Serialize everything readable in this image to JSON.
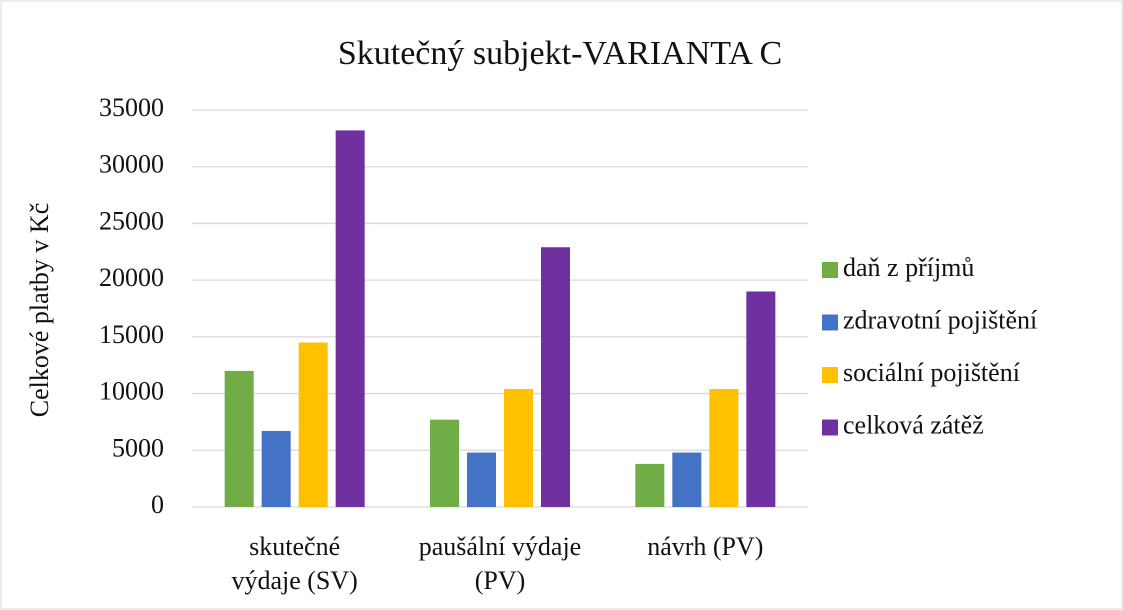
{
  "chart_data": {
    "type": "bar",
    "title": "Skutečný subjekt-VARIANTA C",
    "ylabel": "Celkové platby v Kč",
    "categories": [
      "skutečné výdaje (SV)",
      "paušální výdaje (PV)",
      "návrh (PV)"
    ],
    "series": [
      {
        "name": "daň z příjmů",
        "color": "#70ad47",
        "values": [
          12000,
          7700,
          3800
        ]
      },
      {
        "name": "zdravotní pojištění",
        "color": "#4472c4",
        "values": [
          6700,
          4800,
          4800
        ]
      },
      {
        "name": "sociální pojištění",
        "color": "#ffc000",
        "values": [
          14500,
          10400,
          10400
        ]
      },
      {
        "name": "celková zátěž",
        "color": "#7030a0",
        "values": [
          33200,
          22900,
          19000
        ]
      }
    ],
    "ylim": [
      0,
      35000
    ],
    "yticks": [
      0,
      5000,
      10000,
      15000,
      20000,
      25000,
      30000,
      35000
    ],
    "grid": true,
    "legend": "right"
  }
}
